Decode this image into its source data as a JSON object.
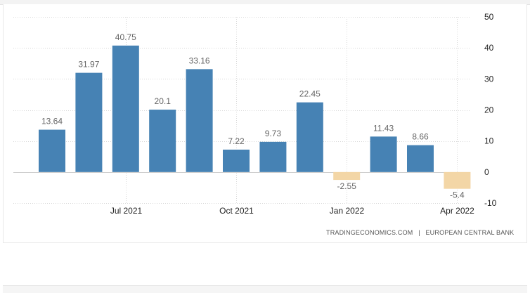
{
  "colors": {
    "positive": "#4682b4",
    "negative": "#f3d6a6",
    "grid": "#d8d8d8",
    "zero_line": "#cfcfcf"
  },
  "source": {
    "left": "TRADINGECONOMICS.COM",
    "separator": "|",
    "right": "EUROPEAN CENTRAL BANK"
  },
  "chart_data": {
    "type": "bar",
    "title": "",
    "xlabel": "",
    "ylabel": "",
    "categories": [
      "2021-05",
      "2021-06",
      "2021-07",
      "2021-08",
      "2021-09",
      "2021-10",
      "2021-11",
      "2021-12",
      "2022-01",
      "2022-02",
      "2022-03",
      "2022-04"
    ],
    "values": [
      13.64,
      31.97,
      40.75,
      20.1,
      33.16,
      7.22,
      9.73,
      22.45,
      -2.55,
      11.43,
      8.66,
      -5.4
    ],
    "data_labels": [
      "13.64",
      "31.97",
      "40.75",
      "20.1",
      "33.16",
      "7.22",
      "9.73",
      "22.45",
      "-2.55",
      "11.43",
      "8.66",
      "-5.4"
    ],
    "ylim": [
      -10,
      50
    ],
    "y_ticks": [
      50,
      40,
      30,
      20,
      10,
      0,
      -10
    ],
    "y_axis_position": "right",
    "x_ticks": [
      {
        "label": "Jul 2021",
        "category": "2021-07"
      },
      {
        "label": "Oct 2021",
        "category": "2021-10"
      },
      {
        "label": "Jan 2022",
        "category": "2022-01"
      },
      {
        "label": "Apr 2022",
        "category": "2022-04"
      }
    ],
    "grid": true,
    "legend": "none"
  }
}
